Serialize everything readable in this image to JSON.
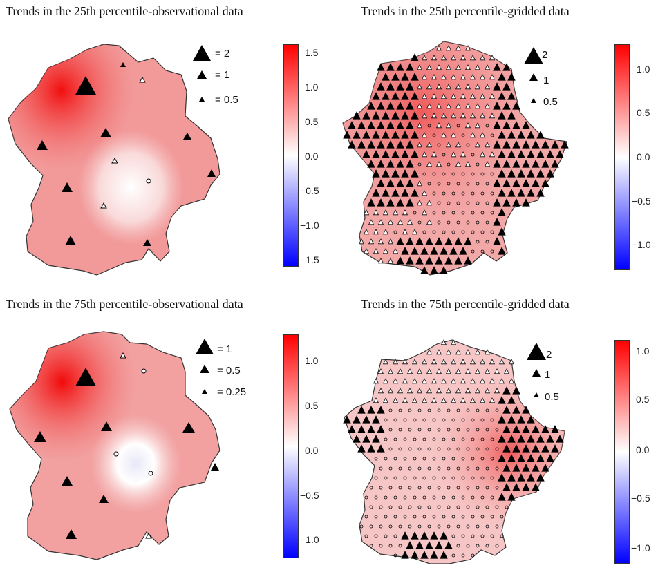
{
  "panels": [
    {
      "title": "Trends in the 25th percentile-observational data",
      "legend": [
        {
          "label": "= 2"
        },
        {
          "label": "= 1"
        },
        {
          "label": "= 0.5"
        }
      ],
      "colorbar": {
        "ticks": [
          "1.5",
          "1.0",
          "0.5",
          "0.0",
          "−0.5",
          "−1.0",
          "−1.5"
        ],
        "min": -1.6,
        "max": 1.6
      }
    },
    {
      "title": "Trends in the 25th percentile-gridded data",
      "legend": [
        {
          "label": "2"
        },
        {
          "label": "1"
        },
        {
          "label": "0.5"
        }
      ],
      "colorbar": {
        "ticks": [
          "1.0",
          "0.5",
          "0.0",
          "−0.5",
          "−1.0"
        ],
        "min": -1.25,
        "max": 1.25
      }
    },
    {
      "title": "Trends in the 75th percentile-observational data",
      "legend": [
        {
          "label": "= 1"
        },
        {
          "label": "= 0.5"
        },
        {
          "label": "= 0.25"
        }
      ],
      "colorbar": {
        "ticks": [
          "1.0",
          "0.5",
          "0.0",
          "−0.5",
          "−1.0"
        ],
        "min": -1.25,
        "max": 1.25
      }
    },
    {
      "title": "Trends in the 75th percentile-gridded data",
      "legend": [
        {
          "label": "2"
        },
        {
          "label": "1"
        },
        {
          "label": "0.5"
        }
      ],
      "colorbar": {
        "ticks": [
          "1.0",
          "0.5",
          "0.0",
          "−0.5",
          "−1.0"
        ],
        "min": -1.15,
        "max": 1.15
      }
    }
  ],
  "colors": {
    "positive": "#ff0000",
    "neutral": "#ffffff",
    "negative": "#0000ff",
    "marker": "#000000",
    "border": "#333333"
  },
  "markers": {
    "significant": "filled-triangle",
    "nonsignificant_positive": "open-triangle",
    "near_zero": "open-circle"
  }
}
